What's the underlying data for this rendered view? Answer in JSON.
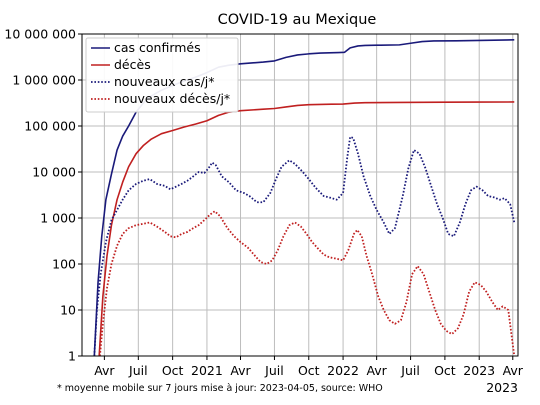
{
  "chart_data": {
    "type": "line",
    "title": "COVID-19 au Mexique",
    "x_scale": "time",
    "y_scale": "log",
    "xlim": [
      "2020-02-01",
      "2023-04-15"
    ],
    "ylim": [
      1,
      10000000
    ],
    "grid": true,
    "legend_position": "top-left",
    "y_ticks": [
      {
        "value": 1,
        "label": "1"
      },
      {
        "value": 10,
        "label": "10"
      },
      {
        "value": 100,
        "label": "100"
      },
      {
        "value": 1000,
        "label": "1 000"
      },
      {
        "value": 10000,
        "label": "10 000"
      },
      {
        "value": 100000,
        "label": "100 000"
      },
      {
        "value": 1000000,
        "label": "1 000 000"
      },
      {
        "value": 10000000,
        "label": "10 000 000"
      }
    ],
    "x_ticks": [
      {
        "date": "2020-04-01",
        "label": "Avr"
      },
      {
        "date": "2020-07-01",
        "label": "Juil"
      },
      {
        "date": "2020-10-01",
        "label": "Oct"
      },
      {
        "date": "2021-01-01",
        "label": "2021"
      },
      {
        "date": "2021-04-01",
        "label": "Avr"
      },
      {
        "date": "2021-07-01",
        "label": "Juil"
      },
      {
        "date": "2021-10-01",
        "label": "Oct"
      },
      {
        "date": "2022-01-01",
        "label": "2022"
      },
      {
        "date": "2022-04-01",
        "label": "Avr"
      },
      {
        "date": "2022-07-01",
        "label": "Juil"
      },
      {
        "date": "2022-10-01",
        "label": "Oct"
      },
      {
        "date": "2023-01-01",
        "label": "2023"
      },
      {
        "date": "2023-04-01",
        "label": "Avr"
      }
    ],
    "year_label": "2023",
    "series": [
      {
        "name": "cas confirmés",
        "color": "#1a1a7a",
        "style": "solid",
        "points": [
          [
            "2020-03-05",
            1
          ],
          [
            "2020-03-15",
            40
          ],
          [
            "2020-03-25",
            400
          ],
          [
            "2020-04-05",
            2500
          ],
          [
            "2020-04-20",
            9000
          ],
          [
            "2020-05-05",
            30000
          ],
          [
            "2020-05-20",
            60000
          ],
          [
            "2020-06-05",
            100000
          ],
          [
            "2020-06-25",
            200000
          ],
          [
            "2020-07-15",
            320000
          ],
          [
            "2020-08-05",
            450000
          ],
          [
            "2020-09-01",
            600000
          ],
          [
            "2020-10-01",
            760000
          ],
          [
            "2020-11-01",
            950000
          ],
          [
            "2020-12-01",
            1150000
          ],
          [
            "2021-01-01",
            1450000
          ],
          [
            "2021-02-01",
            1900000
          ],
          [
            "2021-03-01",
            2100000
          ],
          [
            "2021-04-01",
            2250000
          ],
          [
            "2021-05-01",
            2350000
          ],
          [
            "2021-06-01",
            2450000
          ],
          [
            "2021-07-01",
            2600000
          ],
          [
            "2021-08-01",
            3100000
          ],
          [
            "2021-09-01",
            3500000
          ],
          [
            "2021-10-01",
            3700000
          ],
          [
            "2021-11-01",
            3850000
          ],
          [
            "2021-12-20",
            3950000
          ],
          [
            "2022-01-05",
            4000000
          ],
          [
            "2022-01-20",
            5000000
          ],
          [
            "2022-02-10",
            5500000
          ],
          [
            "2022-03-01",
            5650000
          ],
          [
            "2022-04-01",
            5700000
          ],
          [
            "2022-06-01",
            5800000
          ],
          [
            "2022-07-01",
            6300000
          ],
          [
            "2022-08-01",
            6850000
          ],
          [
            "2022-09-01",
            7050000
          ],
          [
            "2022-11-01",
            7100000
          ],
          [
            "2023-01-01",
            7250000
          ],
          [
            "2023-04-05",
            7480000
          ]
        ]
      },
      {
        "name": "décès",
        "color": "#c02020",
        "style": "solid",
        "points": [
          [
            "2020-03-18",
            1
          ],
          [
            "2020-03-28",
            20
          ],
          [
            "2020-04-08",
            150
          ],
          [
            "2020-04-20",
            700
          ],
          [
            "2020-05-05",
            2500
          ],
          [
            "2020-05-20",
            6000
          ],
          [
            "2020-06-05",
            13000
          ],
          [
            "2020-06-25",
            25000
          ],
          [
            "2020-07-15",
            38000
          ],
          [
            "2020-08-05",
            52000
          ],
          [
            "2020-09-01",
            68000
          ],
          [
            "2020-10-01",
            80000
          ],
          [
            "2020-11-01",
            95000
          ],
          [
            "2020-12-01",
            110000
          ],
          [
            "2021-01-01",
            130000
          ],
          [
            "2021-02-01",
            170000
          ],
          [
            "2021-03-01",
            200000
          ],
          [
            "2021-04-01",
            215000
          ],
          [
            "2021-06-01",
            232000
          ],
          [
            "2021-07-01",
            240000
          ],
          [
            "2021-08-01",
            260000
          ],
          [
            "2021-09-01",
            280000
          ],
          [
            "2021-10-01",
            290000
          ],
          [
            "2021-12-01",
            298000
          ],
          [
            "2022-01-01",
            300000
          ],
          [
            "2022-02-01",
            315000
          ],
          [
            "2022-03-01",
            322000
          ],
          [
            "2022-06-01",
            325000
          ],
          [
            "2022-08-01",
            328000
          ],
          [
            "2022-10-01",
            330000
          ],
          [
            "2023-01-01",
            331000
          ],
          [
            "2023-04-05",
            333000
          ]
        ]
      },
      {
        "name": "nouveaux cas/j*",
        "color": "#1a1a7a",
        "style": "dotted",
        "points": [
          [
            "2020-03-05",
            1
          ],
          [
            "2020-03-12",
            10
          ],
          [
            "2020-03-22",
            60
          ],
          [
            "2020-04-05",
            300
          ],
          [
            "2020-04-20",
            900
          ],
          [
            "2020-05-05",
            1500
          ],
          [
            "2020-05-20",
            2500
          ],
          [
            "2020-06-05",
            4000
          ],
          [
            "2020-06-25",
            5500
          ],
          [
            "2020-07-15",
            6500
          ],
          [
            "2020-08-01",
            7000
          ],
          [
            "2020-08-20",
            5500
          ],
          [
            "2020-09-10",
            5000
          ],
          [
            "2020-09-25",
            4200
          ],
          [
            "2020-10-10",
            4800
          ],
          [
            "2020-10-25",
            5500
          ],
          [
            "2020-11-10",
            6500
          ],
          [
            "2020-11-25",
            8000
          ],
          [
            "2020-12-10",
            10000
          ],
          [
            "2020-12-25",
            9500
          ],
          [
            "2021-01-05",
            12000
          ],
          [
            "2021-01-15",
            16000
          ],
          [
            "2021-01-25",
            14000
          ],
          [
            "2021-02-10",
            8000
          ],
          [
            "2021-03-01",
            6000
          ],
          [
            "2021-03-20",
            4000
          ],
          [
            "2021-04-10",
            3500
          ],
          [
            "2021-04-25",
            3000
          ],
          [
            "2021-05-15",
            2200
          ],
          [
            "2021-06-01",
            2200
          ],
          [
            "2021-06-20",
            3500
          ],
          [
            "2021-07-05",
            7000
          ],
          [
            "2021-07-20",
            13000
          ],
          [
            "2021-08-10",
            18000
          ],
          [
            "2021-08-25",
            15000
          ],
          [
            "2021-09-15",
            10000
          ],
          [
            "2021-10-01",
            7000
          ],
          [
            "2021-10-20",
            4500
          ],
          [
            "2021-11-10",
            3000
          ],
          [
            "2021-11-25",
            2800
          ],
          [
            "2021-12-15",
            2500
          ],
          [
            "2022-01-01",
            3500
          ],
          [
            "2022-01-12",
            20000
          ],
          [
            "2022-01-20",
            58000
          ],
          [
            "2022-01-28",
            55000
          ],
          [
            "2022-02-10",
            25000
          ],
          [
            "2022-02-25",
            8000
          ],
          [
            "2022-03-15",
            3000
          ],
          [
            "2022-04-01",
            1500
          ],
          [
            "2022-04-20",
            800
          ],
          [
            "2022-05-05",
            450
          ],
          [
            "2022-05-20",
            600
          ],
          [
            "2022-06-10",
            3000
          ],
          [
            "2022-06-25",
            12000
          ],
          [
            "2022-07-10",
            30000
          ],
          [
            "2022-07-25",
            25000
          ],
          [
            "2022-08-10",
            12000
          ],
          [
            "2022-08-25",
            5000
          ],
          [
            "2022-09-10",
            2000
          ],
          [
            "2022-09-25",
            1000
          ],
          [
            "2022-10-10",
            450
          ],
          [
            "2022-10-25",
            400
          ],
          [
            "2022-11-10",
            800
          ],
          [
            "2022-11-25",
            2000
          ],
          [
            "2022-12-10",
            4000
          ],
          [
            "2022-12-25",
            4800
          ],
          [
            "2023-01-10",
            4000
          ],
          [
            "2023-01-25",
            3000
          ],
          [
            "2023-02-10",
            2800
          ],
          [
            "2023-02-25",
            2500
          ],
          [
            "2023-03-10",
            2700
          ],
          [
            "2023-03-25",
            2000
          ],
          [
            "2023-04-05",
            800
          ]
        ]
      },
      {
        "name": "nouveaux décès/j*",
        "color": "#c02020",
        "style": "dotted",
        "points": [
          [
            "2020-03-20",
            1
          ],
          [
            "2020-03-28",
            5
          ],
          [
            "2020-04-08",
            30
          ],
          [
            "2020-04-20",
            100
          ],
          [
            "2020-05-05",
            250
          ],
          [
            "2020-05-20",
            450
          ],
          [
            "2020-06-05",
            600
          ],
          [
            "2020-06-25",
            700
          ],
          [
            "2020-07-15",
            750
          ],
          [
            "2020-08-01",
            800
          ],
          [
            "2020-08-20",
            650
          ],
          [
            "2020-09-10",
            500
          ],
          [
            "2020-09-25",
            400
          ],
          [
            "2020-10-10",
            380
          ],
          [
            "2020-10-25",
            450
          ],
          [
            "2020-11-10",
            500
          ],
          [
            "2020-11-25",
            600
          ],
          [
            "2020-12-10",
            700
          ],
          [
            "2020-12-25",
            900
          ],
          [
            "2021-01-10",
            1200
          ],
          [
            "2021-01-22",
            1400
          ],
          [
            "2021-02-05",
            1100
          ],
          [
            "2021-02-25",
            600
          ],
          [
            "2021-03-15",
            400
          ],
          [
            "2021-04-01",
            300
          ],
          [
            "2021-04-20",
            230
          ],
          [
            "2021-05-10",
            150
          ],
          [
            "2021-05-25",
            110
          ],
          [
            "2021-06-10",
            100
          ],
          [
            "2021-06-25",
            120
          ],
          [
            "2021-07-10",
            200
          ],
          [
            "2021-07-25",
            400
          ],
          [
            "2021-08-10",
            700
          ],
          [
            "2021-08-25",
            800
          ],
          [
            "2021-09-10",
            650
          ],
          [
            "2021-09-25",
            450
          ],
          [
            "2021-10-10",
            300
          ],
          [
            "2021-10-25",
            220
          ],
          [
            "2021-11-10",
            160
          ],
          [
            "2021-11-25",
            140
          ],
          [
            "2021-12-15",
            130
          ],
          [
            "2022-01-01",
            120
          ],
          [
            "2022-01-15",
            200
          ],
          [
            "2022-01-30",
            450
          ],
          [
            "2022-02-08",
            550
          ],
          [
            "2022-02-20",
            400
          ],
          [
            "2022-03-05",
            150
          ],
          [
            "2022-03-20",
            60
          ],
          [
            "2022-04-05",
            20
          ],
          [
            "2022-04-20",
            10
          ],
          [
            "2022-05-05",
            6
          ],
          [
            "2022-05-20",
            5
          ],
          [
            "2022-06-05",
            6
          ],
          [
            "2022-06-20",
            15
          ],
          [
            "2022-07-05",
            60
          ],
          [
            "2022-07-20",
            90
          ],
          [
            "2022-08-05",
            60
          ],
          [
            "2022-08-20",
            25
          ],
          [
            "2022-09-05",
            10
          ],
          [
            "2022-09-20",
            5
          ],
          [
            "2022-10-05",
            3.5
          ],
          [
            "2022-10-20",
            3
          ],
          [
            "2022-11-05",
            4
          ],
          [
            "2022-11-20",
            8
          ],
          [
            "2022-12-05",
            25
          ],
          [
            "2022-12-20",
            40
          ],
          [
            "2023-01-05",
            35
          ],
          [
            "2023-01-20",
            25
          ],
          [
            "2023-02-05",
            15
          ],
          [
            "2023-02-20",
            10
          ],
          [
            "2023-03-05",
            12
          ],
          [
            "2023-03-20",
            10
          ],
          [
            "2023-04-05",
            1
          ]
        ]
      }
    ],
    "footnote": "* moyenne mobile sur 7 jours mise à jour: 2023-04-05, source: WHO"
  }
}
